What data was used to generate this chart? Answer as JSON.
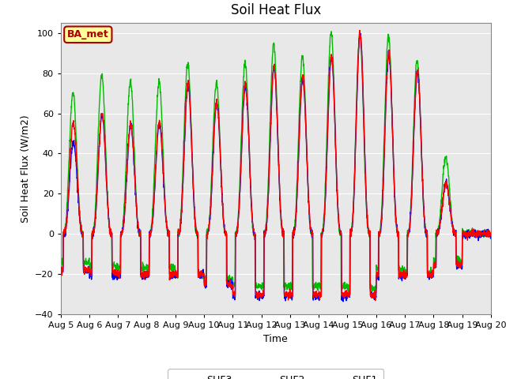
{
  "title": "Soil Heat Flux",
  "xlabel": "Time",
  "ylabel": "Soil Heat Flux (W/m2)",
  "ylim": [
    -40,
    105
  ],
  "yticks": [
    -40,
    -20,
    0,
    20,
    40,
    60,
    80,
    100
  ],
  "shf1_color": "#FF0000",
  "shf2_color": "#0000FF",
  "shf3_color": "#00BB00",
  "line_width": 1.0,
  "annotation_text": "BA_met",
  "annotation_bg": "#FFFF99",
  "annotation_border": "#AA0000",
  "plot_bg_color": "#E8E8E8",
  "n_days": 15,
  "start_day": 5,
  "points_per_day": 144,
  "day_peaks_shf1": [
    55,
    60,
    55,
    56,
    75,
    66,
    75,
    83,
    78,
    89,
    100,
    90,
    81,
    25,
    0
  ],
  "day_peaks_shf2": [
    46,
    59,
    54,
    55,
    74,
    65,
    73,
    82,
    77,
    88,
    99,
    89,
    80,
    25,
    0
  ],
  "day_peaks_shf3": [
    70,
    79,
    76,
    76,
    85,
    75,
    85,
    94,
    88,
    100,
    99,
    99,
    86,
    38,
    0
  ],
  "night_min_shf1": [
    -18,
    -19,
    -20,
    -20,
    -20,
    -25,
    -30,
    -30,
    -30,
    -30,
    -30,
    -20,
    -20,
    -15,
    0
  ],
  "night_min_shf2": [
    -18,
    -21,
    -21,
    -21,
    -20,
    -25,
    -31,
    -31,
    -31,
    -31,
    -30,
    -21,
    -21,
    -16,
    0
  ],
  "night_min_shf3": [
    -14,
    -16,
    -17,
    -17,
    -20,
    -22,
    -26,
    -26,
    -26,
    -26,
    -27,
    -17,
    -19,
    -13,
    0
  ]
}
